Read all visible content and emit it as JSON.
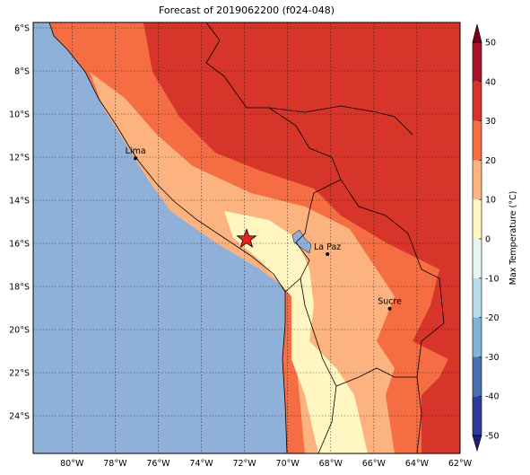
{
  "title": "Forecast of 2019062200 (f024-048)",
  "map": {
    "lon_lim": [
      -81.8,
      -62
    ],
    "lat_lim": [
      -5.75,
      -25.75
    ],
    "lon_ticks": [
      {
        "value": -80,
        "label": "80°W"
      },
      {
        "value": -78,
        "label": "78°W"
      },
      {
        "value": -76,
        "label": "76°W"
      },
      {
        "value": -74,
        "label": "74°W"
      },
      {
        "value": -72,
        "label": "72°W"
      },
      {
        "value": -70,
        "label": "70°W"
      },
      {
        "value": -68,
        "label": "68°W"
      },
      {
        "value": -66,
        "label": "66°W"
      },
      {
        "value": -64,
        "label": "64°W"
      },
      {
        "value": -62,
        "label": "62°W"
      }
    ],
    "lat_ticks": [
      {
        "value": -6,
        "label": "6°S"
      },
      {
        "value": -8,
        "label": "8°S"
      },
      {
        "value": -10,
        "label": "10°S"
      },
      {
        "value": -12,
        "label": "12°S"
      },
      {
        "value": -14,
        "label": "14°S"
      },
      {
        "value": -16,
        "label": "16°S"
      },
      {
        "value": -18,
        "label": "18°S"
      },
      {
        "value": -20,
        "label": "20°S"
      },
      {
        "value": -22,
        "label": "22°S"
      },
      {
        "value": -24,
        "label": "24°S"
      }
    ],
    "places": [
      {
        "label": "Lima",
        "lon": -77.05,
        "lat": -12.05
      },
      {
        "label": "La Paz",
        "lon": -68.15,
        "lat": -16.5
      },
      {
        "label": "Sucre",
        "lon": -65.26,
        "lat": -19.03
      }
    ],
    "marker": {
      "lon": -71.9,
      "lat": -15.8,
      "color": "#e8231f"
    }
  },
  "colorbar": {
    "label": "Max Temperature (°C)",
    "lim": [
      -50,
      50
    ],
    "ticks": [
      -50,
      -40,
      -30,
      -20,
      -10,
      0,
      10,
      20,
      30,
      40,
      50
    ],
    "colors": [
      "#2d3c9a",
      "#4a70b0",
      "#84b2d4",
      "#b9dbea",
      "#e7f5f0",
      "#fff6c2",
      "#fdb37f",
      "#f46d43",
      "#d7342a",
      "#a8132a"
    ],
    "extend_colors": [
      "#1d1d80",
      "#80001f"
    ]
  }
}
